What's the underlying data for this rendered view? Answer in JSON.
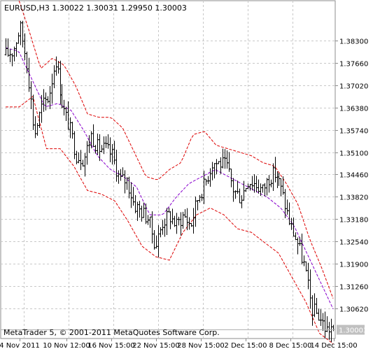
{
  "chart_data": {
    "type": "bar",
    "title": "EURUSD,H3  1.30022 1.30031 1.29950 1.30003",
    "footer": "MetaTrader 5, © 2001-2011 MetaQuotes Software Corp.",
    "last_price_label": "1.30003",
    "last_price": 1.30003,
    "xlabel": "",
    "ylabel": "",
    "ylim": [
      1.2975,
      1.3945
    ],
    "y_ticks": [
      "1.38300",
      "1.37660",
      "1.37020",
      "1.36380",
      "1.35740",
      "1.35100",
      "1.34460",
      "1.33820",
      "1.33180",
      "1.32540",
      "1.31900",
      "1.31260",
      "1.30620"
    ],
    "x_ticks": [
      "4 Nov 2011",
      "10 Nov 12:00",
      "16 Nov 15:00",
      "22 Nov 15:00",
      "28 Nov 15:00",
      "2 Dec 15:00",
      "8 Dec 15:00",
      "14 Dec 15:00"
    ],
    "grid": true,
    "bars_count": 158,
    "series": [
      {
        "type": "ohlc",
        "color": "#000000",
        "anchors": [
          1.379,
          1.38,
          1.387,
          1.376,
          1.356,
          1.364,
          1.367,
          1.378,
          1.364,
          1.358,
          1.35,
          1.349,
          1.356,
          1.352,
          1.352,
          1.35,
          1.343,
          1.343,
          1.336,
          1.334,
          1.332,
          1.324,
          1.331,
          1.333,
          1.33,
          1.333,
          1.33,
          1.338,
          1.342,
          1.348,
          1.348,
          1.347,
          1.34,
          1.338,
          1.343,
          1.342,
          1.34,
          1.344,
          1.345,
          1.338,
          1.33,
          1.325,
          1.318,
          1.306,
          1.304,
          1.3,
          1.301
        ]
      },
      {
        "type": "band_upper",
        "color": "#dd0000",
        "style": "dash",
        "anchors": [
          1.396,
          1.396,
          1.386,
          1.375,
          1.378,
          1.376,
          1.37,
          1.362,
          1.361,
          1.361,
          1.358,
          1.351,
          1.344,
          1.343,
          1.346,
          1.348,
          1.356,
          1.357,
          1.353,
          1.352,
          1.351,
          1.35,
          1.348,
          1.347,
          1.342,
          1.336,
          1.326,
          1.318,
          1.309
        ]
      },
      {
        "type": "band_middle",
        "color": "#8800cc",
        "style": "dash",
        "anchors": [
          1.381,
          1.38,
          1.372,
          1.364,
          1.365,
          1.363,
          1.357,
          1.35,
          1.346,
          1.344,
          1.341,
          1.333,
          1.333,
          1.338,
          1.342,
          1.344,
          1.346,
          1.344,
          1.342,
          1.34,
          1.338,
          1.335,
          1.33,
          1.322,
          1.314,
          1.306
        ]
      },
      {
        "type": "band_lower",
        "color": "#dd0000",
        "style": "dash",
        "anchors": [
          1.364,
          1.364,
          1.367,
          1.352,
          1.352,
          1.347,
          1.34,
          1.339,
          1.337,
          1.331,
          1.324,
          1.321,
          1.32,
          1.328,
          1.333,
          1.335,
          1.333,
          1.329,
          1.328,
          1.325,
          1.322,
          1.315,
          1.308,
          1.299,
          1.296
        ]
      }
    ]
  }
}
